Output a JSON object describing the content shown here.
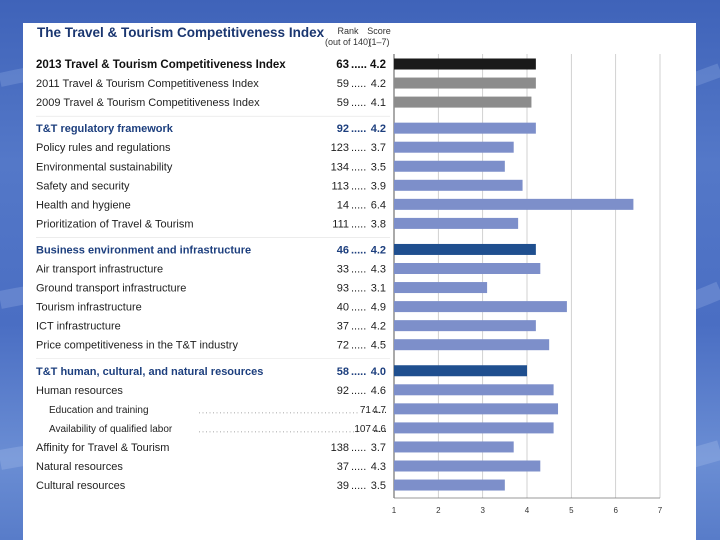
{
  "chart_data": {
    "type": "bar",
    "orientation": "horizontal",
    "title": "The Travel & Tourism Competitiveness Index",
    "rank_header": "Rank",
    "rank_subheader": "(out of 140)",
    "score_header": "Score",
    "score_subheader": "(1–7)",
    "xlim": [
      1,
      7
    ],
    "xticks": [
      "1",
      "2",
      "3",
      "4",
      "5",
      "6",
      "7"
    ],
    "rows": [
      {
        "label": "2013 Travel & Tourism Competitiveness Index",
        "rank": "63",
        "score": "4.2",
        "value": 4.2,
        "style": "top",
        "color": "#1a1a1a",
        "gap_before": false
      },
      {
        "label": "2011 Travel & Tourism Competitiveness Index",
        "rank": "59",
        "score": "4.2",
        "value": 4.2,
        "style": "normal",
        "color": "#8c8c8c",
        "gap_before": false
      },
      {
        "label": "2009 Travel & Tourism Competitiveness Index",
        "rank": "59",
        "score": "4.1",
        "value": 4.1,
        "style": "normal",
        "color": "#8c8c8c",
        "gap_before": false
      },
      {
        "label": "T&T regulatory framework",
        "rank": "92",
        "score": "4.2",
        "value": 4.2,
        "style": "bold",
        "color": "#7d8fca",
        "gap_before": true
      },
      {
        "label": "Policy rules and regulations",
        "rank": "123",
        "score": "3.7",
        "value": 3.7,
        "style": "normal",
        "color": "#7d8fca",
        "gap_before": false
      },
      {
        "label": "Environmental sustainability",
        "rank": "134",
        "score": "3.5",
        "value": 3.5,
        "style": "normal",
        "color": "#7d8fca",
        "gap_before": false
      },
      {
        "label": "Safety and security",
        "rank": "113",
        "score": "3.9",
        "value": 3.9,
        "style": "normal",
        "color": "#7d8fca",
        "gap_before": false
      },
      {
        "label": "Health and hygiene",
        "rank": "14",
        "score": "6.4",
        "value": 6.4,
        "style": "normal",
        "color": "#7d8fca",
        "gap_before": false
      },
      {
        "label": "Prioritization of Travel & Tourism",
        "rank": "111",
        "score": "3.8",
        "value": 3.8,
        "style": "normal",
        "color": "#7d8fca",
        "gap_before": false
      },
      {
        "label": "Business environment and infrastructure",
        "rank": "46",
        "score": "4.2",
        "value": 4.2,
        "style": "bold",
        "color": "#1f4f8f",
        "gap_before": true
      },
      {
        "label": "Air transport infrastructure",
        "rank": "33",
        "score": "4.3",
        "value": 4.3,
        "style": "normal",
        "color": "#7d8fca",
        "gap_before": false
      },
      {
        "label": "Ground transport infrastructure",
        "rank": "93",
        "score": "3.1",
        "value": 3.1,
        "style": "normal",
        "color": "#7d8fca",
        "gap_before": false
      },
      {
        "label": "Tourism infrastructure",
        "rank": "40",
        "score": "4.9",
        "value": 4.9,
        "style": "normal",
        "color": "#7d8fca",
        "gap_before": false
      },
      {
        "label": "ICT infrastructure",
        "rank": "37",
        "score": "4.2",
        "value": 4.2,
        "style": "normal",
        "color": "#7d8fca",
        "gap_before": false
      },
      {
        "label": "Price competitiveness in the T&T industry",
        "rank": "72",
        "score": "4.5",
        "value": 4.5,
        "style": "normal",
        "color": "#7d8fca",
        "gap_before": false
      },
      {
        "label": "T&T human, cultural, and natural resources",
        "rank": "58",
        "score": "4.0",
        "value": 4.0,
        "style": "bold",
        "color": "#1f4f8f",
        "gap_before": true
      },
      {
        "label": "Human resources",
        "rank": "92",
        "score": "4.6",
        "value": 4.6,
        "style": "normal",
        "color": "#7d8fca",
        "gap_before": false
      },
      {
        "label": "Education and training",
        "rank": "71",
        "score": "4.7",
        "value": 4.7,
        "style": "sub",
        "color": "#7d8fca",
        "gap_before": false
      },
      {
        "label": "Availability of qualified labor",
        "rank": "107",
        "score": "4.6",
        "value": 4.6,
        "style": "sub",
        "color": "#7d8fca",
        "gap_before": false
      },
      {
        "label": "Affinity for Travel & Tourism",
        "rank": "138",
        "score": "3.7",
        "value": 3.7,
        "style": "normal",
        "color": "#7d8fca",
        "gap_before": false
      },
      {
        "label": "Natural resources",
        "rank": "37",
        "score": "4.3",
        "value": 4.3,
        "style": "normal",
        "color": "#7d8fca",
        "gap_before": false
      },
      {
        "label": "Cultural resources",
        "rank": "39",
        "score": "3.5",
        "value": 3.5,
        "style": "normal",
        "color": "#7d8fca",
        "gap_before": false
      }
    ]
  }
}
